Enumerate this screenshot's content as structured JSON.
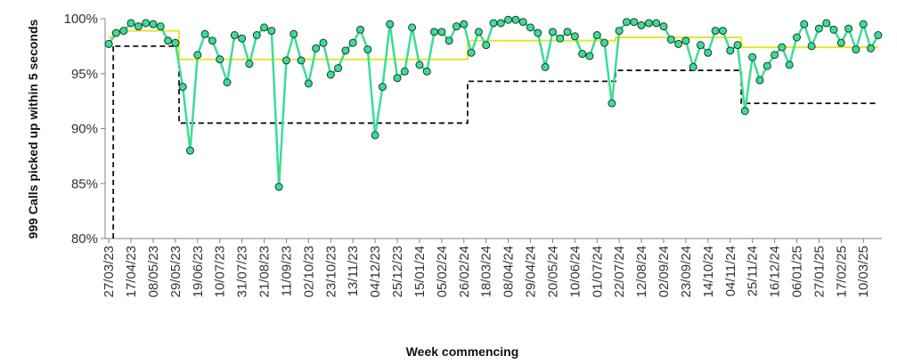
{
  "chart_data": {
    "type": "line",
    "ylabel": "999 Calls picked up within 5 seconds",
    "xlabel": "Week commencing",
    "ylim": [
      80,
      100
    ],
    "yticks": [
      "80%",
      "85%",
      "90%",
      "95%",
      "100%"
    ],
    "ytick_values": [
      80,
      85,
      90,
      95,
      100
    ],
    "grid": false,
    "legend": "none",
    "x_tick_labels": [
      "27/03/23",
      "17/04/23",
      "08/05/23",
      "29/05/23",
      "19/06/23",
      "10/07/23",
      "31/07/23",
      "21/08/23",
      "11/09/23",
      "02/10/23",
      "23/10/23",
      "13/11/23",
      "04/12/23",
      "25/12/23",
      "15/01/24",
      "05/02/24",
      "26/02/24",
      "18/03/24",
      "08/04/24",
      "29/04/24",
      "20/05/24",
      "10/06/24",
      "01/07/24",
      "22/07/24",
      "12/08/24",
      "02/09/24",
      "23/09/24",
      "14/10/24",
      "04/11/24",
      "25/11/24",
      "16/12/24",
      "06/01/25",
      "27/01/25",
      "17/02/25",
      "10/03/25"
    ],
    "series": [
      {
        "name": "",
        "style": "green-line-markers",
        "color": "#3ddc97",
        "marker_fill": "#3ddc97",
        "values": [
          97.7,
          98.7,
          98.9,
          99.6,
          99.3,
          99.6,
          99.5,
          99.3,
          98.0,
          97.8,
          93.8,
          88.0,
          96.7,
          98.6,
          98.0,
          96.3,
          94.2,
          98.5,
          98.2,
          95.9,
          98.5,
          99.2,
          98.9,
          84.7,
          96.2,
          98.6,
          96.2,
          94.1,
          97.3,
          97.8,
          94.9,
          95.5,
          97.1,
          97.8,
          99.0,
          97.2,
          89.4,
          93.8,
          99.5,
          94.6,
          95.2,
          99.2,
          95.8,
          95.2,
          98.8,
          98.8,
          98.0,
          99.3,
          99.5,
          96.9,
          98.8,
          97.6,
          99.6,
          99.6,
          99.9,
          99.9,
          99.7,
          99.2,
          98.7,
          95.6,
          98.8,
          98.2,
          98.8,
          98.4,
          96.8,
          96.6,
          98.5,
          97.8,
          92.3,
          98.9,
          99.7,
          99.7,
          99.4,
          99.6,
          99.6,
          99.3,
          98.1,
          97.7,
          98.0,
          95.6,
          97.6,
          96.9,
          98.9,
          98.9,
          97.1,
          97.6,
          91.6,
          96.5,
          94.4,
          95.7,
          96.7,
          97.4,
          95.8,
          98.3,
          99.5,
          97.5,
          99.1,
          99.6,
          99.0,
          97.8,
          99.1,
          97.2,
          99.5,
          97.3,
          98.5
        ]
      },
      {
        "name": "",
        "style": "yellow-step",
        "color": "#e6e62e",
        "values": [
          98.3,
          98.8,
          98.9,
          98.9,
          98.9,
          98.9,
          98.9,
          98.9,
          98.9,
          98.9,
          96.3,
          96.3,
          96.3,
          96.3,
          96.3,
          96.3,
          96.3,
          96.3,
          96.3,
          96.3,
          96.3,
          96.3,
          96.3,
          96.3,
          96.3,
          96.3,
          96.3,
          96.3,
          96.3,
          96.3,
          96.3,
          96.3,
          96.3,
          96.3,
          96.3,
          96.3,
          96.3,
          96.3,
          96.3,
          96.3,
          96.3,
          96.3,
          96.3,
          96.3,
          96.3,
          96.3,
          96.3,
          96.3,
          96.3,
          98.0,
          98.0,
          98.0,
          98.0,
          98.0,
          98.0,
          98.0,
          98.0,
          98.0,
          98.0,
          98.0,
          98.0,
          98.0,
          98.0,
          98.0,
          98.0,
          98.0,
          98.0,
          98.0,
          98.0,
          98.3,
          98.3,
          98.3,
          98.3,
          98.3,
          98.3,
          98.3,
          98.3,
          98.3,
          98.3,
          98.3,
          98.3,
          98.3,
          98.3,
          98.3,
          98.3,
          98.3,
          97.4,
          97.4,
          97.4,
          97.4,
          97.4,
          97.4,
          97.4,
          97.4,
          97.4,
          97.4,
          97.4,
          97.4,
          97.4,
          97.4,
          97.4,
          97.4,
          97.4,
          97.4,
          97.4
        ]
      },
      {
        "name": "",
        "style": "black-dashed-step",
        "color": "#111111",
        "values": [
          97.5,
          97.5,
          97.5,
          97.5,
          97.5,
          97.5,
          97.5,
          97.5,
          97.5,
          97.5,
          90.5,
          90.5,
          90.5,
          90.5,
          90.5,
          90.5,
          90.5,
          90.5,
          90.5,
          90.5,
          90.5,
          90.5,
          90.5,
          90.5,
          90.5,
          90.5,
          90.5,
          90.5,
          90.5,
          90.5,
          90.5,
          90.5,
          90.5,
          90.5,
          90.5,
          90.5,
          90.5,
          90.5,
          90.5,
          90.5,
          90.5,
          90.5,
          90.5,
          90.5,
          90.5,
          90.5,
          90.5,
          90.5,
          90.5,
          94.3,
          94.3,
          94.3,
          94.3,
          94.3,
          94.3,
          94.3,
          94.3,
          94.3,
          94.3,
          94.3,
          94.3,
          94.3,
          94.3,
          94.3,
          94.3,
          94.3,
          94.3,
          94.3,
          94.3,
          95.3,
          95.3,
          95.3,
          95.3,
          95.3,
          95.3,
          95.3,
          95.3,
          95.3,
          95.3,
          95.3,
          95.3,
          95.3,
          95.3,
          95.3,
          95.3,
          95.3,
          92.3,
          92.3,
          92.3,
          92.3,
          92.3,
          92.3,
          92.3,
          92.3,
          92.3,
          92.3,
          92.3,
          92.3,
          92.3,
          92.3,
          92.3,
          92.3,
          92.3,
          92.3,
          92.3
        ],
        "leading_drop_to": 80
      }
    ]
  }
}
